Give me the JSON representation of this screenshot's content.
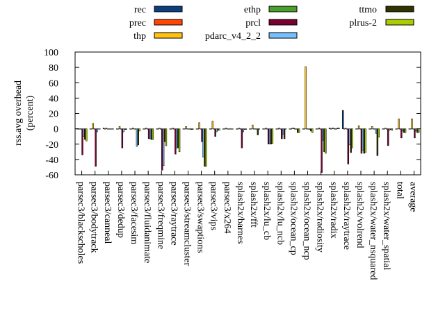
{
  "chart_data": {
    "type": "bar",
    "ylabel": "rss.avg overhead\n(percent)",
    "ylabel_lines": [
      "rss.avg overhead",
      "(percent)"
    ],
    "ylim": [
      -60,
      100
    ],
    "yticks": [
      -60,
      -40,
      -20,
      0,
      20,
      40,
      60,
      80,
      100
    ],
    "legend_placement": "top",
    "grid": false,
    "categories": [
      "parsec3/blackscholes",
      "parsec3/bodytrack",
      "parsec3/canneal",
      "parsec3/dedup",
      "parsec3/facesim",
      "parsec3/fluidanimate",
      "parsec3/freqmine",
      "parsec3/raytrace",
      "parsec3/streamcluster",
      "parsec3/swaptions",
      "parsec3/vips",
      "parsec3/x264",
      "splash2x/barnes",
      "splash2x/fft",
      "splash2x/lu_cb",
      "splash2x/lu_ncb",
      "splash2x/ocean_cp",
      "splash2x/ocean_ncp",
      "splash2x/radiosity",
      "splash2x/radix",
      "splash2x/raytrace",
      "splash2x/volrend",
      "splash2x/water_nsquared",
      "splash2x/water_spatial",
      "total",
      "average"
    ],
    "series": [
      {
        "name": "rec",
        "color": "#0b3f7f",
        "values": [
          0,
          0,
          1,
          0,
          0,
          0,
          0,
          0,
          0,
          0,
          0,
          0,
          0,
          0,
          0,
          0,
          0,
          0,
          0,
          1,
          24,
          0,
          0,
          0,
          0,
          0
        ]
      },
      {
        "name": "prec",
        "color": "#ff4500",
        "values": [
          0,
          0,
          0,
          0,
          0,
          0,
          0,
          0,
          0,
          0,
          0,
          0,
          0,
          0,
          0,
          0,
          0,
          0,
          0,
          0,
          0,
          0,
          0,
          0,
          0,
          0
        ]
      },
      {
        "name": "thp",
        "color": "#ffc20e",
        "values": [
          0,
          7,
          1,
          3,
          1,
          1,
          1,
          1,
          3,
          8,
          10,
          1,
          1,
          5,
          1,
          1,
          1,
          81,
          1,
          1,
          1,
          4,
          3,
          1,
          13,
          13
        ]
      },
      {
        "name": "ethp",
        "color": "#4aa02c",
        "values": [
          0,
          0,
          0,
          0,
          0,
          0,
          0,
          0,
          0,
          0,
          0,
          0,
          0,
          0,
          0,
          0,
          1,
          0,
          0,
          1,
          0,
          0,
          0,
          0,
          0,
          0
        ]
      },
      {
        "name": "prcl",
        "color": "#7a0032",
        "values": [
          -34,
          -49,
          0,
          -25,
          0,
          -13,
          -54,
          -33,
          0,
          -17,
          -10,
          0,
          -25,
          0,
          -20,
          -13,
          0,
          0,
          -57,
          0,
          -46,
          -32,
          0,
          -22,
          -12,
          -12
        ]
      },
      {
        "name": "pdarc_v4_2_2",
        "color": "#77c0ff",
        "values": [
          -10,
          -4,
          0,
          -4,
          -23,
          -13,
          -48,
          -25,
          0,
          -37,
          -4,
          0,
          -4,
          0,
          -20,
          -7,
          0,
          -1,
          -15,
          0,
          -21,
          -28,
          -6,
          -2,
          -3,
          -3
        ]
      },
      {
        "name": "ttmo",
        "color": "#333300",
        "values": [
          -14,
          0,
          0,
          -1,
          -21,
          -14,
          -17,
          -25,
          -1,
          -49,
          -2,
          0,
          -1,
          -8,
          -20,
          -13,
          -5,
          -3,
          -30,
          1,
          -31,
          -32,
          -35,
          -1,
          -5,
          -5
        ]
      },
      {
        "name": "plrus-2",
        "color": "#aacc00",
        "values": [
          -16,
          0,
          0,
          -1,
          -3,
          -14,
          -22,
          -30,
          -1,
          -49,
          -2,
          0,
          -1,
          0,
          -19,
          0,
          -5,
          -5,
          -32,
          1,
          -25,
          -31,
          -11,
          -2,
          -5,
          -5
        ]
      }
    ]
  }
}
